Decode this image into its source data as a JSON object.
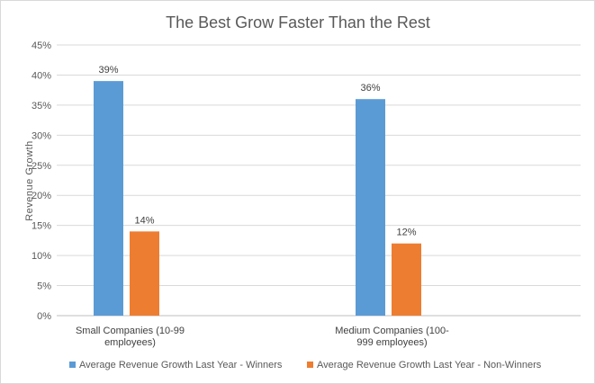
{
  "chart_data": {
    "type": "bar",
    "title": "The Best Grow Faster Than the Rest",
    "xlabel": "",
    "ylabel": "Revenue  Growth",
    "ylim": [
      0,
      45
    ],
    "ytick_step": 5,
    "ytick_format": "percent",
    "grid": true,
    "legend_position": "bottom",
    "categories": [
      [
        "Small Companies     (10-99",
        "employees)"
      ],
      [
        "Medium Companies (100-",
        "999 employees)"
      ]
    ],
    "series": [
      {
        "name": "Average Revenue Growth Last Year - Winners",
        "color": "#5b9bd5",
        "values": [
          39,
          36
        ],
        "labels": [
          "39%",
          "36%"
        ]
      },
      {
        "name": "Average Revenue Growth Last Year - Non-Winners",
        "color": "#ed7d31",
        "values": [
          14,
          12
        ],
        "labels": [
          "14%",
          "12%"
        ]
      }
    ]
  }
}
